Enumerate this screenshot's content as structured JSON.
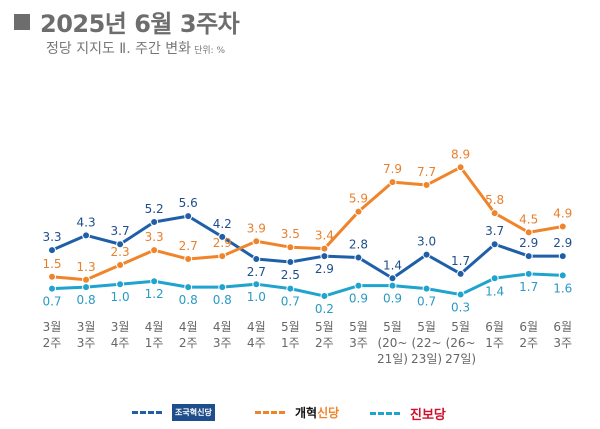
{
  "header": {
    "title": "2025년 6월 3주차",
    "subtitle": "정당 지지도 Ⅱ. 주간 변화",
    "unit": "단위: %"
  },
  "chart_data": {
    "type": "line",
    "categories": [
      [
        "3월",
        "2주"
      ],
      [
        "3월",
        "3주"
      ],
      [
        "3월",
        "4주"
      ],
      [
        "4월",
        "1주"
      ],
      [
        "4월",
        "2주"
      ],
      [
        "4월",
        "3주"
      ],
      [
        "4월",
        "4주"
      ],
      [
        "5월",
        "1주"
      ],
      [
        "5월",
        "2주"
      ],
      [
        "5월",
        "3주"
      ],
      [
        "5월",
        "(20~",
        "21일)"
      ],
      [
        "5월",
        "(22~",
        "23일)"
      ],
      [
        "5월",
        "(26~",
        "27일)"
      ],
      [
        "6월",
        "1주"
      ],
      [
        "6월",
        "2주"
      ],
      [
        "6월",
        "3주"
      ]
    ],
    "series": [
      {
        "name": "조국혁신당",
        "color": "#1f5fa8",
        "values": [
          3.3,
          4.3,
          3.7,
          5.2,
          5.6,
          4.2,
          2.7,
          2.5,
          2.9,
          2.8,
          1.4,
          3.0,
          1.7,
          3.7,
          2.9,
          2.9
        ]
      },
      {
        "name": "개혁신당",
        "color": "#f0842b",
        "values": [
          1.5,
          1.3,
          2.3,
          3.3,
          2.7,
          2.9,
          3.9,
          3.5,
          3.4,
          5.9,
          7.9,
          7.7,
          8.9,
          5.8,
          4.5,
          4.9
        ]
      },
      {
        "name": "진보당",
        "color": "#1fa3cf",
        "values": [
          0.7,
          0.8,
          1.0,
          1.2,
          0.8,
          0.8,
          1.0,
          0.7,
          0.2,
          0.9,
          0.9,
          0.7,
          0.3,
          1.4,
          1.7,
          1.6
        ]
      }
    ],
    "legend_placement": "bottom",
    "grid": false
  },
  "legend": [
    {
      "label": "조국혁신당"
    },
    {
      "label_a": "개혁",
      "label_b": "신당"
    },
    {
      "label": "진보당"
    }
  ]
}
